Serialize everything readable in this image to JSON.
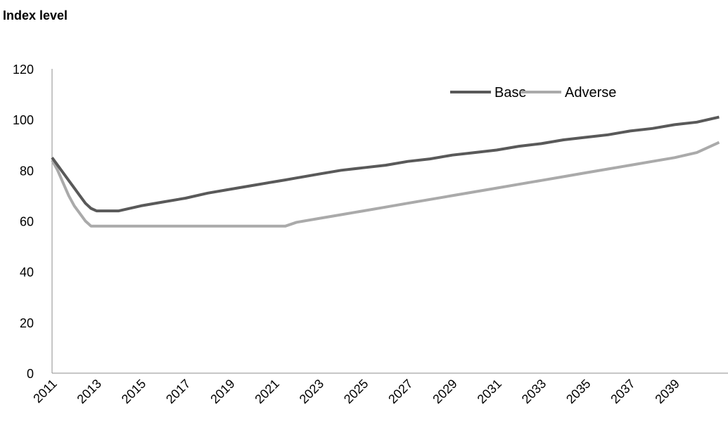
{
  "chart_data": {
    "type": "line",
    "title": "Index level",
    "xlabel": "",
    "ylabel": "",
    "ylim": [
      0,
      120
    ],
    "xlim": [
      2011,
      2041
    ],
    "y_ticks": [
      0,
      20,
      40,
      60,
      80,
      100,
      120
    ],
    "x_ticks": [
      "2011",
      "2013",
      "2015",
      "2017",
      "2019",
      "2021",
      "2023",
      "2025",
      "2027",
      "2029",
      "2031",
      "2033",
      "2035",
      "2037",
      "2039"
    ],
    "grid": false,
    "legend_position": "top-right",
    "x": [
      2011.0,
      2011.25,
      2011.5,
      2011.75,
      2012.0,
      2012.25,
      2012.5,
      2012.75,
      2013.0,
      2013.5,
      2014.0,
      2015.0,
      2016.0,
      2017.0,
      2018.0,
      2019.0,
      2020.0,
      2021.0,
      2021.5,
      2022.0,
      2023.0,
      2024.0,
      2025.0,
      2026.0,
      2027.0,
      2028.0,
      2029.0,
      2030.0,
      2031.0,
      2032.0,
      2033.0,
      2034.0,
      2035.0,
      2036.0,
      2037.0,
      2038.0,
      2039.0,
      2040.0,
      2041.0
    ],
    "series": [
      {
        "name": "Base",
        "color": "#595959",
        "values": [
          85,
          82,
          79,
          76,
          73,
          70,
          67,
          65,
          64,
          64,
          64,
          66,
          67.5,
          69,
          71,
          72.5,
          74,
          75.5,
          76.2,
          77,
          78.5,
          80,
          81,
          82,
          83.5,
          84.5,
          86,
          87,
          88,
          89.5,
          90.5,
          92,
          93,
          94,
          95.5,
          96.5,
          98,
          99,
          101
        ]
      },
      {
        "name": "Adverse",
        "color": "#aaaaaa",
        "values": [
          84,
          80,
          75,
          70,
          66,
          63,
          60,
          58,
          58,
          58,
          58,
          58,
          58,
          58,
          58,
          58,
          58,
          58,
          58,
          59.5,
          61,
          62.5,
          64,
          65.5,
          67,
          68.5,
          70,
          71.5,
          73,
          74.5,
          76,
          77.5,
          79,
          80.5,
          82,
          83.5,
          85,
          87,
          91
        ]
      }
    ]
  }
}
